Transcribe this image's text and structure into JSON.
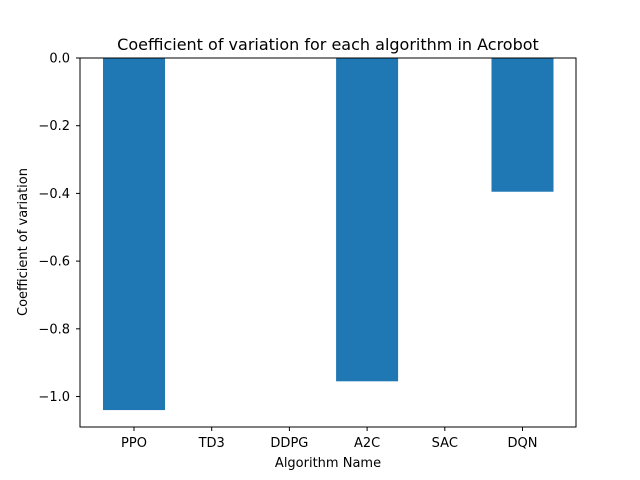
{
  "chart_data": {
    "type": "bar",
    "title": "Coefficient of variation for each algorithm in Acrobot",
    "xlabel": "Algorithm Name",
    "ylabel": "Coefficient of variation",
    "categories": [
      "PPO",
      "TD3",
      "DDPG",
      "A2C",
      "SAC",
      "DQN"
    ],
    "values": [
      -1.04,
      0.0,
      0.0,
      -0.955,
      0.0,
      -0.395
    ],
    "ylim": [
      -1.09,
      0.0
    ],
    "yticks": [
      0.0,
      -0.2,
      -0.4,
      -0.6,
      -0.8,
      -1.0
    ],
    "ytick_labels": [
      "0.0",
      "−0.2",
      "−0.4",
      "−0.6",
      "−0.8",
      "−1.0"
    ],
    "grid": false,
    "bar_color": "#1f77b4"
  }
}
